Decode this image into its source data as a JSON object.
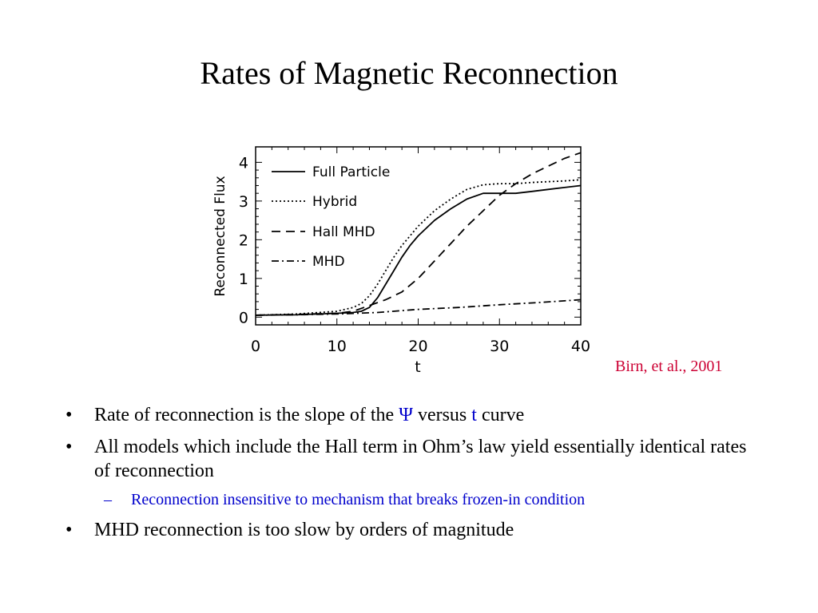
{
  "slide": {
    "title": "Rates of Magnetic Reconnection",
    "citation": "Birn, et al., 2001",
    "accent_color": "#0000cc",
    "citation_color": "#cc0033"
  },
  "bullets": {
    "b1_pre": "Rate of reconnection is the slope of the ",
    "b1_psi": "Ψ",
    "b1_mid": " versus ",
    "b1_t": "t",
    "b1_post": " curve",
    "b2": "All models which include the Hall term in Ohm’s law yield essentially identical rates of reconnection",
    "b2_sub": "Reconnection insensitive to mechanism that breaks frozen-in condition",
    "b3": "MHD reconnection is too slow by orders of magnitude",
    "bullet_mark": "•",
    "sub_mark": "–"
  },
  "chart_data": {
    "type": "line",
    "title": "",
    "xlabel": "t",
    "ylabel": "Reconnected Flux",
    "xlim": [
      0,
      40
    ],
    "ylim": [
      -0.2,
      4.4
    ],
    "xticks": [
      0,
      10,
      20,
      30,
      40
    ],
    "yticks": [
      0,
      1,
      2,
      3,
      4
    ],
    "grid": false,
    "legend_position": "top-left",
    "series": [
      {
        "name": "Full Particle",
        "dash": "solid",
        "x": [
          0,
          5,
          10,
          12,
          13,
          14,
          15,
          16,
          17,
          18,
          19,
          20,
          22,
          24,
          26,
          28,
          30,
          32,
          34,
          36,
          38,
          40
        ],
        "y": [
          0.05,
          0.06,
          0.1,
          0.12,
          0.15,
          0.25,
          0.5,
          0.85,
          1.2,
          1.55,
          1.85,
          2.1,
          2.5,
          2.8,
          3.05,
          3.2,
          3.2,
          3.2,
          3.25,
          3.3,
          3.35,
          3.4
        ]
      },
      {
        "name": "Hybrid",
        "dash": "dotted",
        "x": [
          0,
          5,
          10,
          12,
          13,
          14,
          15,
          16,
          17,
          18,
          19,
          20,
          22,
          24,
          26,
          28,
          30,
          32,
          34,
          36,
          38,
          40
        ],
        "y": [
          0.05,
          0.08,
          0.15,
          0.25,
          0.35,
          0.55,
          0.85,
          1.2,
          1.55,
          1.85,
          2.1,
          2.35,
          2.75,
          3.05,
          3.3,
          3.42,
          3.45,
          3.45,
          3.48,
          3.5,
          3.52,
          3.55
        ]
      },
      {
        "name": "Hall MHD",
        "dash": "dashed",
        "x": [
          0,
          5,
          10,
          12,
          14,
          16,
          18,
          20,
          22,
          24,
          26,
          28,
          30,
          32,
          34,
          36,
          38,
          40
        ],
        "y": [
          0.05,
          0.07,
          0.1,
          0.15,
          0.3,
          0.45,
          0.65,
          1.0,
          1.45,
          1.9,
          2.35,
          2.75,
          3.15,
          3.45,
          3.7,
          3.9,
          4.1,
          4.25
        ]
      },
      {
        "name": "MHD",
        "dash": "dashdot",
        "x": [
          0,
          5,
          10,
          15,
          20,
          25,
          30,
          35,
          40
        ],
        "y": [
          0.05,
          0.06,
          0.08,
          0.12,
          0.2,
          0.25,
          0.32,
          0.38,
          0.45
        ]
      }
    ]
  }
}
